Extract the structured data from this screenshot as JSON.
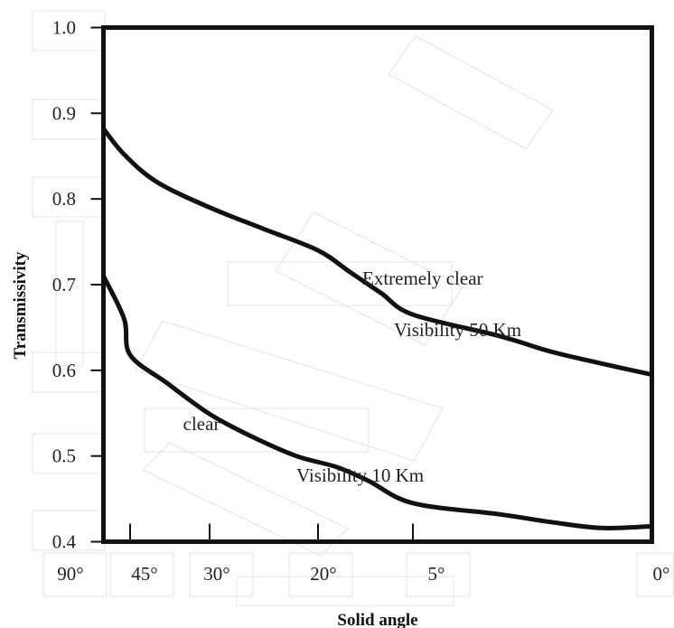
{
  "chart_data": {
    "type": "line",
    "title": "",
    "xlabel": "Solid angle",
    "ylabel": "Transmissivity",
    "ylim": [
      0.4,
      1.0
    ],
    "y_ticks": [
      "1.0",
      "0.9",
      "0.8",
      "0.7",
      "0.6",
      "0.5",
      "0.4"
    ],
    "x_ticks": [
      "90°",
      "45°",
      "30°",
      "20°",
      "5°",
      "0°"
    ],
    "x_tick_values": [
      90,
      45,
      30,
      20,
      5,
      0
    ],
    "x_axis_order": "decreasing",
    "grid": false,
    "series": [
      {
        "name": "",
        "points": [
          [
            90,
            0.882
          ],
          [
            55,
            0.852
          ],
          [
            40,
            0.82
          ],
          [
            30,
            0.79
          ],
          [
            25,
            0.765
          ],
          [
            20,
            0.74
          ],
          [
            15,
            0.715
          ],
          [
            10,
            0.69
          ],
          [
            5,
            0.665
          ],
          [
            0,
            0.64
          ],
          [
            -5,
            0.622
          ],
          [
            -10,
            0.608
          ],
          [
            -15,
            0.595
          ]
        ]
      },
      {
        "name": "",
        "points": [
          [
            90,
            0.71
          ],
          [
            55,
            0.66
          ],
          [
            45,
            0.618
          ],
          [
            38,
            0.585
          ],
          [
            30,
            0.549
          ],
          [
            26,
            0.522
          ],
          [
            22,
            0.5
          ],
          [
            17,
            0.487
          ],
          [
            12,
            0.471
          ],
          [
            5,
            0.445
          ],
          [
            0,
            0.432
          ],
          [
            -5,
            0.423
          ],
          [
            -10,
            0.416
          ],
          [
            -15,
            0.418
          ]
        ]
      }
    ],
    "annotations": [
      {
        "text": "Extremely clear",
        "x": 13,
        "y": 0.7
      },
      {
        "text": "Visibility 50 Km",
        "x": 8,
        "y": 0.64
      },
      {
        "text": "clear",
        "x": 35,
        "y": 0.53
      },
      {
        "text": "Visibility 10 Km",
        "x": 22,
        "y": 0.47
      }
    ]
  }
}
